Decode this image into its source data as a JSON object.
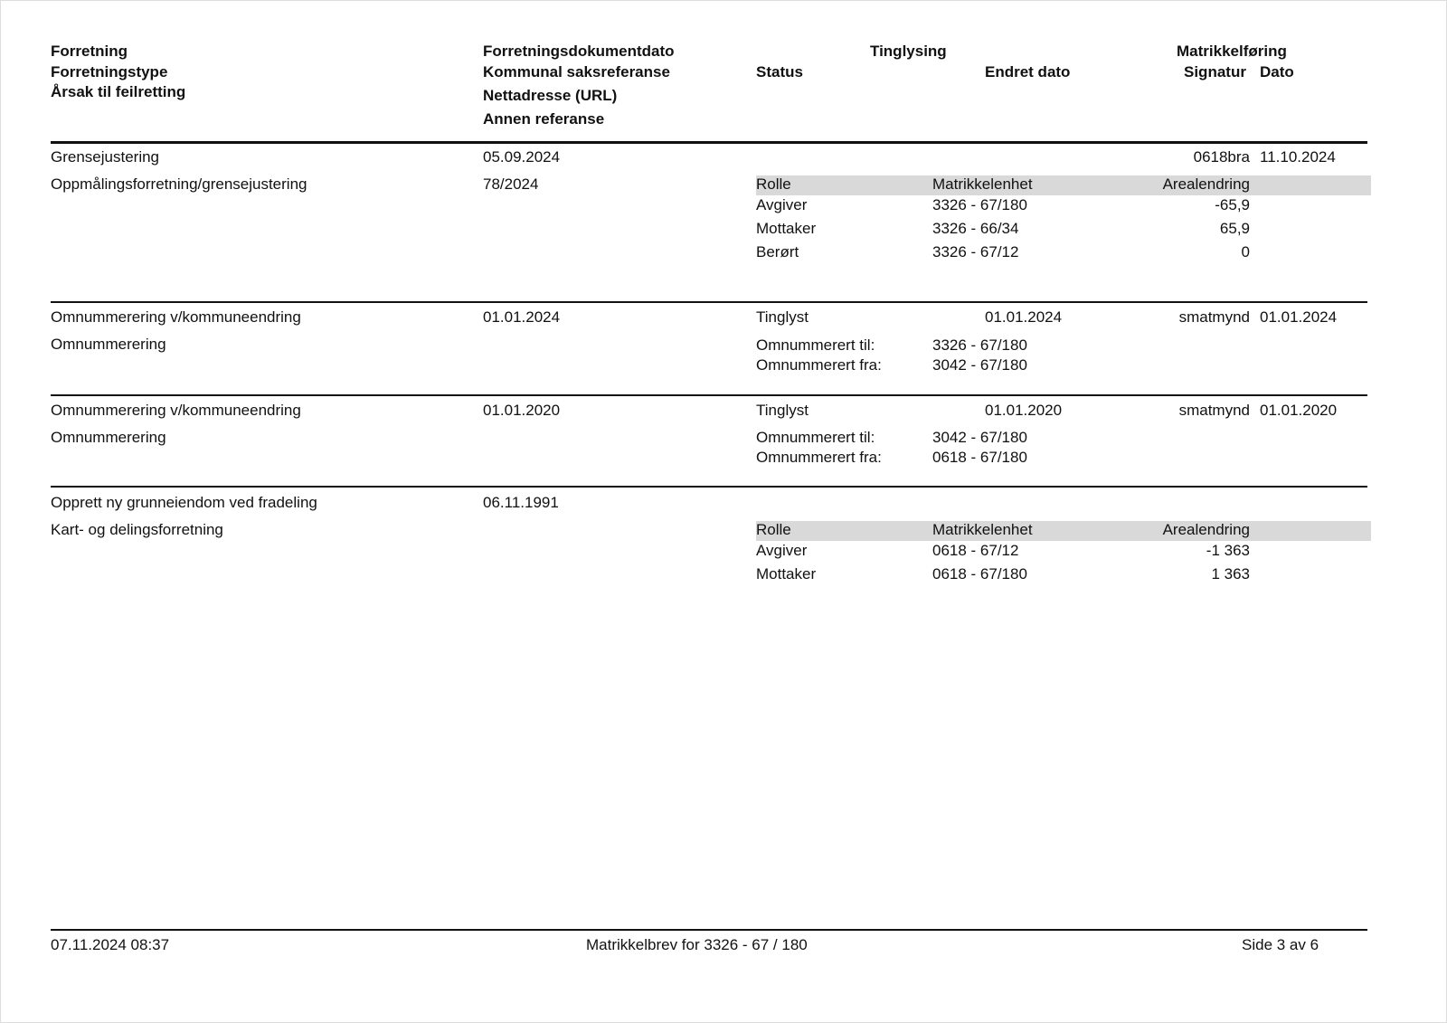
{
  "header": {
    "col1": [
      "Forretning",
      "Forretningstype",
      "Årsak til feilretting"
    ],
    "col2": [
      "Forretningsdokumentdato",
      "Kommunal saksreferanse",
      "Nettadresse (URL)",
      "Annen referanse"
    ],
    "tinglysing": "Tinglysing",
    "status": "Status",
    "endret_dato": "Endret dato",
    "matrikkelforing": "Matrikkelføring",
    "signatur": "Signatur",
    "dato": "Dato"
  },
  "records": [
    {
      "forretning": "Grensejustering",
      "type": "Oppmålingsforretning/grensejustering",
      "dokumentdato": "05.09.2024",
      "saksreferanse": "78/2024",
      "signatur": "0618bra",
      "dato": "11.10.2024",
      "table_headers": [
        "Rolle",
        "Matrikkelenhet",
        "Arealendring"
      ],
      "rows": [
        [
          "Avgiver",
          "3326 - 67/180",
          "-65,9"
        ],
        [
          "Mottaker",
          "3326 - 66/34",
          "65,9"
        ],
        [
          "Berørt",
          "3326 - 67/12",
          "0"
        ]
      ]
    },
    {
      "forretning": "Omnummerering v/kommuneendring",
      "type": "Omnummerering",
      "dokumentdato": "01.01.2024",
      "status": "Tinglyst",
      "endret_dato": "01.01.2024",
      "signatur": "smatmynd",
      "dato": "01.01.2024",
      "til_label": "Omnummerert til:",
      "til": "3326 - 67/180",
      "fra_label": "Omnummerert fra:",
      "fra": "3042 - 67/180"
    },
    {
      "forretning": "Omnummerering v/kommuneendring",
      "type": "Omnummerering",
      "dokumentdato": "01.01.2020",
      "status": "Tinglyst",
      "endret_dato": "01.01.2020",
      "signatur": "smatmynd",
      "dato": "01.01.2020",
      "til_label": "Omnummerert til:",
      "til": "3042 - 67/180",
      "fra_label": "Omnummerert fra:",
      "fra": "0618 - 67/180"
    },
    {
      "forretning": "Opprett ny grunneiendom ved fradeling",
      "type": "Kart- og delingsforretning",
      "dokumentdato": "06.11.1991",
      "table_headers": [
        "Rolle",
        "Matrikkelenhet",
        "Arealendring"
      ],
      "rows": [
        [
          "Avgiver",
          "0618 - 67/12",
          "-1 363"
        ],
        [
          "Mottaker",
          "0618 - 67/180",
          "1 363"
        ]
      ]
    }
  ],
  "footer": {
    "timestamp": "07.11.2024 08:37",
    "title": "Matrikkelbrev for 3326 - 67 / 180",
    "page": "Side 3 av 6"
  }
}
